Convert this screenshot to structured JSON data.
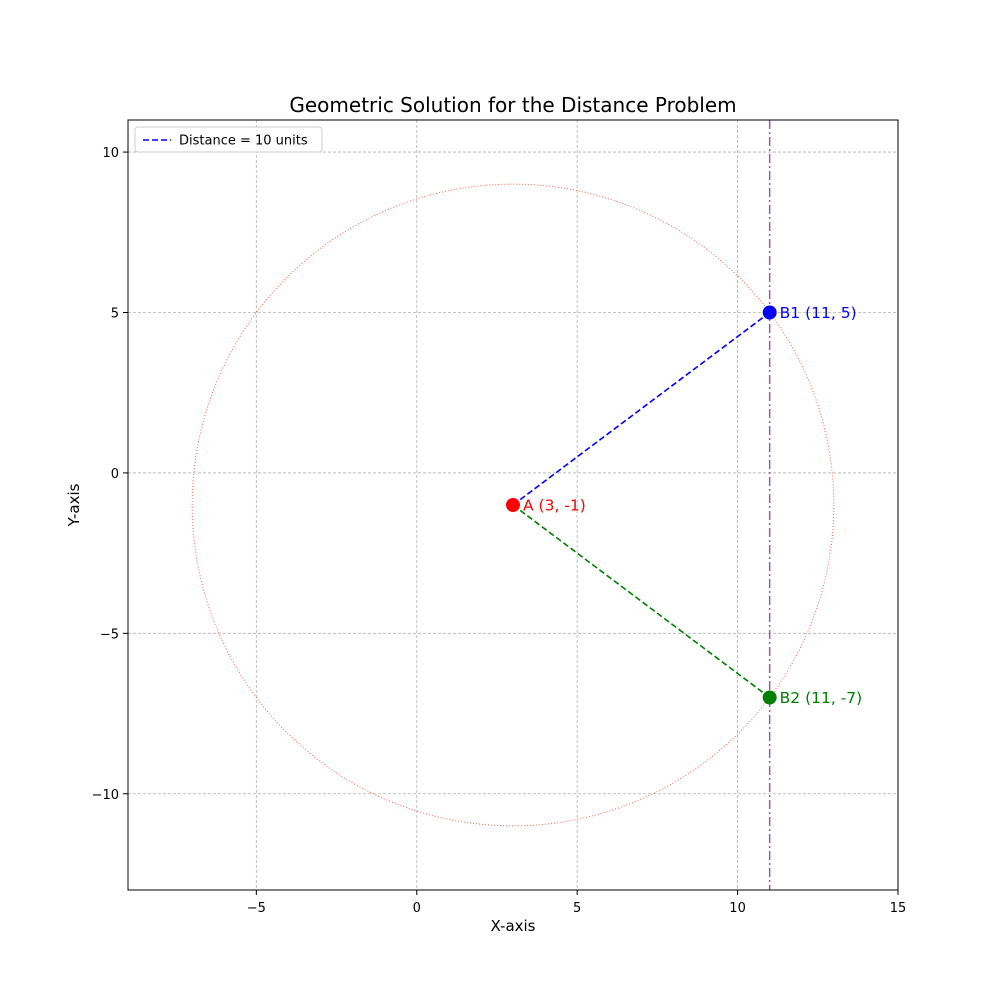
{
  "chart_data": {
    "type": "scatter",
    "title": "Geometric Solution for the Distance Problem",
    "xlabel": "X-axis",
    "ylabel": "Y-axis",
    "xlim": [
      -9,
      15
    ],
    "ylim": [
      -13,
      11
    ],
    "xticks": [
      -5,
      0,
      5,
      10,
      15
    ],
    "yticks": [
      -10,
      -5,
      0,
      5,
      10
    ],
    "xtick_labels": [
      "−5",
      "0",
      "5",
      "10",
      "15"
    ],
    "ytick_labels": [
      "−10",
      "−5",
      "0",
      "5",
      "10"
    ],
    "grid": true,
    "legend_position": "top-left",
    "legend": [
      {
        "label": "Distance = 10 units",
        "color": "#0000ff",
        "style": "dashed"
      }
    ],
    "circle": {
      "center": [
        3,
        -1
      ],
      "radius": 10,
      "color": "#ff6347",
      "style": "dotted"
    },
    "vertical_line": {
      "x": 11,
      "color": "#9b59b6",
      "style": "dashdot"
    },
    "points": [
      {
        "name": "A",
        "x": 3,
        "y": -1,
        "label": "A (3, -1)",
        "color": "#ff0000"
      },
      {
        "name": "B1",
        "x": 11,
        "y": 5,
        "label": "B1 (11, 5)",
        "color": "#0000ff"
      },
      {
        "name": "B2",
        "x": 11,
        "y": -7,
        "label": "B2 (11, -7)",
        "color": "#008000"
      }
    ],
    "segments": [
      {
        "from": [
          3,
          -1
        ],
        "to": [
          11,
          5
        ],
        "color": "#0000ff",
        "style": "dashed"
      },
      {
        "from": [
          3,
          -1
        ],
        "to": [
          11,
          -7
        ],
        "color": "#008000",
        "style": "dashed"
      }
    ]
  }
}
